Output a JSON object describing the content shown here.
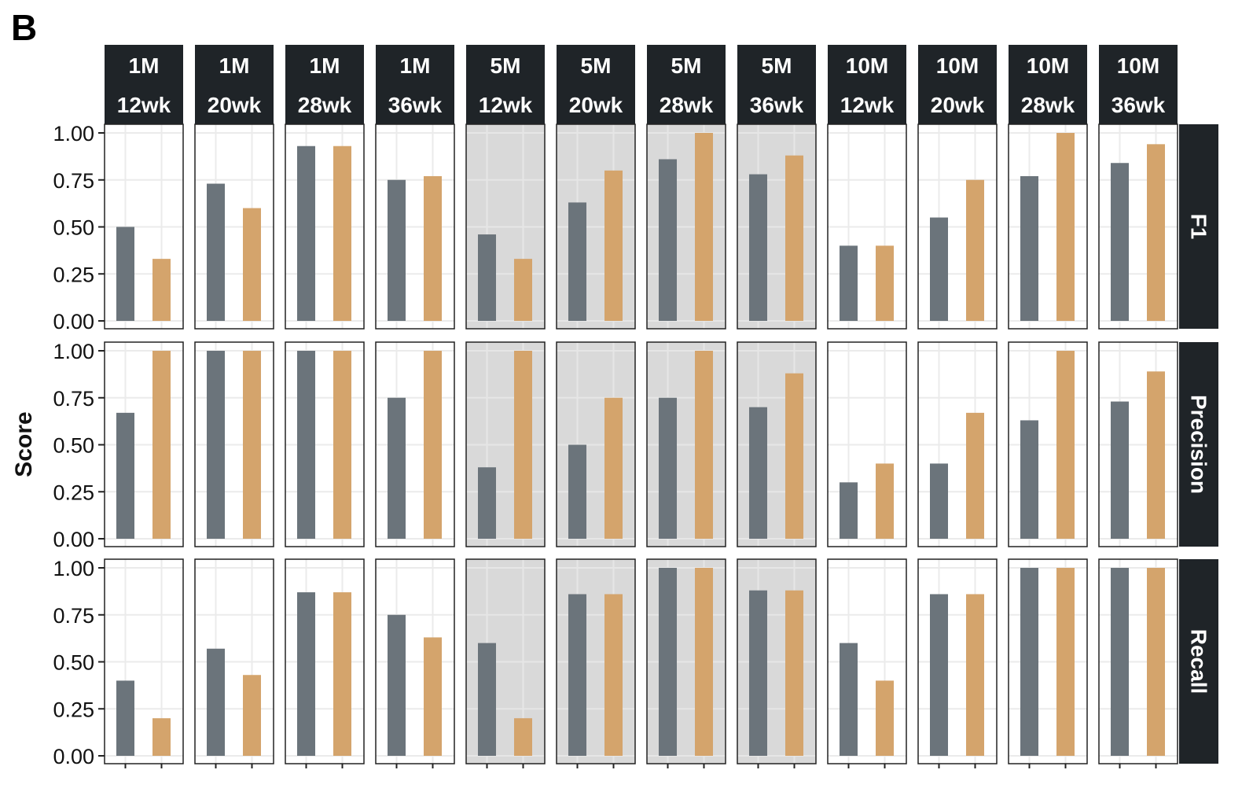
{
  "panel_label": "B",
  "chart_data": {
    "type": "bar",
    "ylabel": "Score",
    "ylim": [
      0,
      1
    ],
    "y_ticks": [
      "0.00",
      "0.25",
      "0.50",
      "0.75",
      "1.00"
    ],
    "columns": [
      {
        "line1": "1M",
        "line2": "12wk",
        "highlighted": false
      },
      {
        "line1": "1M",
        "line2": "20wk",
        "highlighted": false
      },
      {
        "line1": "1M",
        "line2": "28wk",
        "highlighted": false
      },
      {
        "line1": "1M",
        "line2": "36wk",
        "highlighted": false
      },
      {
        "line1": "5M",
        "line2": "12wk",
        "highlighted": true
      },
      {
        "line1": "5M",
        "line2": "20wk",
        "highlighted": true
      },
      {
        "line1": "5M",
        "line2": "28wk",
        "highlighted": true
      },
      {
        "line1": "5M",
        "line2": "36wk",
        "highlighted": true
      },
      {
        "line1": "10M",
        "line2": "12wk",
        "highlighted": false
      },
      {
        "line1": "10M",
        "line2": "20wk",
        "highlighted": false
      },
      {
        "line1": "10M",
        "line2": "28wk",
        "highlighted": false
      },
      {
        "line1": "10M",
        "line2": "36wk",
        "highlighted": false
      }
    ],
    "rows": [
      {
        "name": "F1",
        "gray": [
          0.5,
          0.73,
          0.93,
          0.75,
          0.46,
          0.63,
          0.86,
          0.78,
          0.4,
          0.55,
          0.77,
          0.84
        ],
        "orange": [
          0.33,
          0.6,
          0.93,
          0.77,
          0.33,
          0.8,
          1.0,
          0.88,
          0.4,
          0.75,
          1.0,
          0.94
        ]
      },
      {
        "name": "Precision",
        "gray": [
          0.67,
          1.0,
          1.0,
          0.75,
          0.38,
          0.5,
          0.75,
          0.7,
          0.3,
          0.4,
          0.63,
          0.73
        ],
        "orange": [
          1.0,
          1.0,
          1.0,
          1.0,
          1.0,
          0.75,
          1.0,
          0.88,
          0.4,
          0.67,
          1.0,
          0.89
        ]
      },
      {
        "name": "Recall",
        "gray": [
          0.4,
          0.57,
          0.87,
          0.75,
          0.6,
          0.86,
          1.0,
          0.88,
          0.6,
          0.86,
          1.0,
          1.0
        ],
        "orange": [
          0.2,
          0.43,
          0.87,
          0.63,
          0.2,
          0.86,
          1.0,
          0.88,
          0.4,
          0.86,
          1.0,
          1.0
        ]
      }
    ],
    "colors": {
      "gray_bar": "#6b747b",
      "orange_bar": "#d4a46c",
      "strip": "#1f2428",
      "highlight_bg": "#d9d9d9",
      "grid": "#ebebeb"
    }
  }
}
